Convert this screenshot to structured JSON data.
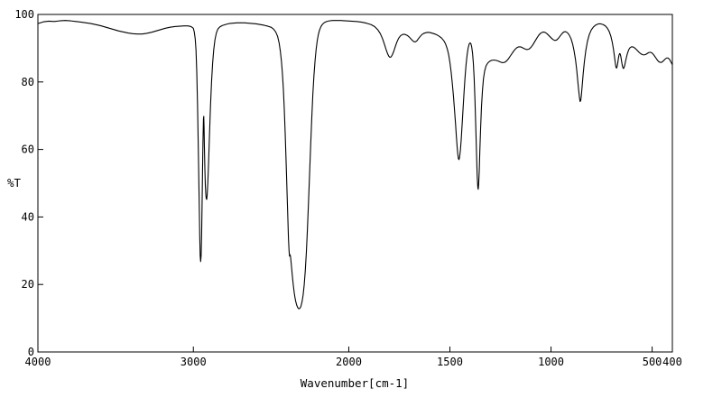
{
  "colors": {
    "background": "#ffffff",
    "line": "#000000",
    "axis": "#000000"
  },
  "chart_data": {
    "type": "line",
    "title": "",
    "xlabel": "Wavenumber[cm-1]",
    "ylabel": "%T",
    "x_axis": {
      "min": 400,
      "max": 4000,
      "break_at": 2000,
      "left_fraction": 0.49,
      "ticks": [
        4000,
        3000,
        2000,
        1500,
        1000,
        500,
        400
      ]
    },
    "y_axis": {
      "min": 0,
      "max": 100,
      "ticks": [
        0,
        20,
        40,
        60,
        80,
        100
      ]
    },
    "grid": false,
    "legend": false,
    "points": [
      [
        4000,
        97.3
      ],
      [
        3965,
        97.8
      ],
      [
        3930,
        98.0
      ],
      [
        3895,
        97.9
      ],
      [
        3860,
        98.1
      ],
      [
        3825,
        98.2
      ],
      [
        3790,
        98.1
      ],
      [
        3755,
        97.9
      ],
      [
        3720,
        97.7
      ],
      [
        3690,
        97.5
      ],
      [
        3660,
        97.3
      ],
      [
        3630,
        97.0
      ],
      [
        3600,
        96.7
      ],
      [
        3570,
        96.3
      ],
      [
        3540,
        95.9
      ],
      [
        3510,
        95.5
      ],
      [
        3480,
        95.1
      ],
      [
        3450,
        94.8
      ],
      [
        3420,
        94.5
      ],
      [
        3390,
        94.3
      ],
      [
        3360,
        94.2
      ],
      [
        3330,
        94.2
      ],
      [
        3300,
        94.4
      ],
      [
        3270,
        94.7
      ],
      [
        3240,
        95.1
      ],
      [
        3210,
        95.5
      ],
      [
        3180,
        95.9
      ],
      [
        3150,
        96.2
      ],
      [
        3120,
        96.4
      ],
      [
        3090,
        96.5
      ],
      [
        3060,
        96.6
      ],
      [
        3035,
        96.6
      ],
      [
        3015,
        96.4
      ],
      [
        3000,
        95.9
      ],
      [
        2994,
        94.8
      ],
      [
        2988,
        92.8
      ],
      [
        2983,
        89.5
      ],
      [
        2978,
        83.0
      ],
      [
        2973,
        73.0
      ],
      [
        2968,
        60.0
      ],
      [
        2963,
        46.0
      ],
      [
        2959,
        34.5
      ],
      [
        2956,
        28.5
      ],
      [
        2953,
        26.8
      ],
      [
        2950,
        28.5
      ],
      [
        2947,
        34.0
      ],
      [
        2944,
        43.0
      ],
      [
        2941,
        53.5
      ],
      [
        2938,
        62.5
      ],
      [
        2935,
        69.0
      ],
      [
        2933,
        69.8
      ],
      [
        2931,
        66.5
      ],
      [
        2929,
        61.0
      ],
      [
        2926,
        54.5
      ],
      [
        2923,
        49.5
      ],
      [
        2920,
        46.8
      ],
      [
        2917,
        45.4
      ],
      [
        2914,
        45.2
      ],
      [
        2911,
        46.5
      ],
      [
        2907,
        50.0
      ],
      [
        2902,
        56.0
      ],
      [
        2896,
        64.5
      ],
      [
        2890,
        72.5
      ],
      [
        2883,
        80.0
      ],
      [
        2876,
        85.5
      ],
      [
        2869,
        89.5
      ],
      [
        2861,
        92.5
      ],
      [
        2852,
        94.5
      ],
      [
        2842,
        95.7
      ],
      [
        2830,
        96.3
      ],
      [
        2815,
        96.7
      ],
      [
        2795,
        97.0
      ],
      [
        2770,
        97.3
      ],
      [
        2745,
        97.4
      ],
      [
        2720,
        97.5
      ],
      [
        2695,
        97.5
      ],
      [
        2670,
        97.5
      ],
      [
        2645,
        97.4
      ],
      [
        2620,
        97.3
      ],
      [
        2595,
        97.2
      ],
      [
        2570,
        97.0
      ],
      [
        2545,
        96.8
      ],
      [
        2520,
        96.5
      ],
      [
        2500,
        96.2
      ],
      [
        2485,
        95.7
      ],
      [
        2470,
        94.8
      ],
      [
        2458,
        93.5
      ],
      [
        2448,
        91.5
      ],
      [
        2440,
        89.0
      ],
      [
        2433,
        86.0
      ],
      [
        2427,
        82.5
      ],
      [
        2421,
        78.0
      ],
      [
        2415,
        72.0
      ],
      [
        2409,
        64.5
      ],
      [
        2403,
        56.0
      ],
      [
        2397,
        47.0
      ],
      [
        2392,
        39.5
      ],
      [
        2388,
        33.5
      ],
      [
        2384,
        29.8
      ],
      [
        2381,
        28.4
      ],
      [
        2378,
        28.8
      ],
      [
        2375,
        28.3
      ],
      [
        2372,
        27.0
      ],
      [
        2368,
        25.0
      ],
      [
        2363,
        22.5
      ],
      [
        2357,
        19.8
      ],
      [
        2350,
        17.2
      ],
      [
        2343,
        15.3
      ],
      [
        2336,
        14.0
      ],
      [
        2329,
        13.2
      ],
      [
        2322,
        12.8
      ],
      [
        2315,
        12.9
      ],
      [
        2308,
        13.5
      ],
      [
        2301,
        14.8
      ],
      [
        2294,
        16.8
      ],
      [
        2287,
        19.8
      ],
      [
        2280,
        24.0
      ],
      [
        2273,
        29.5
      ],
      [
        2266,
        36.5
      ],
      [
        2259,
        44.5
      ],
      [
        2252,
        53.0
      ],
      [
        2245,
        61.5
      ],
      [
        2238,
        69.5
      ],
      [
        2231,
        76.5
      ],
      [
        2224,
        82.0
      ],
      [
        2217,
        86.3
      ],
      [
        2210,
        89.7
      ],
      [
        2203,
        92.2
      ],
      [
        2196,
        94.0
      ],
      [
        2188,
        95.4
      ],
      [
        2179,
        96.4
      ],
      [
        2169,
        97.1
      ],
      [
        2157,
        97.6
      ],
      [
        2143,
        97.9
      ],
      [
        2126,
        98.1
      ],
      [
        2105,
        98.2
      ],
      [
        2080,
        98.2
      ],
      [
        2050,
        98.2
      ],
      [
        2020,
        98.1
      ],
      [
        1990,
        98.0
      ],
      [
        1962,
        97.9
      ],
      [
        1936,
        97.7
      ],
      [
        1912,
        97.4
      ],
      [
        1890,
        97.0
      ],
      [
        1872,
        96.4
      ],
      [
        1857,
        95.5
      ],
      [
        1844,
        94.3
      ],
      [
        1833,
        92.8
      ],
      [
        1824,
        91.2
      ],
      [
        1816,
        89.7
      ],
      [
        1809,
        88.5
      ],
      [
        1803,
        87.7
      ],
      [
        1797,
        87.3
      ],
      [
        1791,
        87.4
      ],
      [
        1785,
        88.0
      ],
      [
        1778,
        89.0
      ],
      [
        1771,
        90.3
      ],
      [
        1763,
        91.7
      ],
      [
        1754,
        92.9
      ],
      [
        1744,
        93.7
      ],
      [
        1733,
        94.1
      ],
      [
        1722,
        94.1
      ],
      [
        1711,
        93.8
      ],
      [
        1701,
        93.3
      ],
      [
        1692,
        92.7
      ],
      [
        1684,
        92.2
      ],
      [
        1677,
        91.9
      ],
      [
        1670,
        91.9
      ],
      [
        1663,
        92.2
      ],
      [
        1656,
        92.8
      ],
      [
        1648,
        93.4
      ],
      [
        1639,
        94.0
      ],
      [
        1629,
        94.4
      ],
      [
        1618,
        94.6
      ],
      [
        1607,
        94.7
      ],
      [
        1596,
        94.6
      ],
      [
        1585,
        94.4
      ],
      [
        1574,
        94.2
      ],
      [
        1563,
        93.9
      ],
      [
        1552,
        93.5
      ],
      [
        1541,
        93.0
      ],
      [
        1530,
        92.2
      ],
      [
        1521,
        91.2
      ],
      [
        1513,
        89.8
      ],
      [
        1506,
        88.0
      ],
      [
        1500,
        85.8
      ],
      [
        1494,
        83.0
      ],
      [
        1488,
        79.5
      ],
      [
        1482,
        75.5
      ],
      [
        1477,
        71.5
      ],
      [
        1472,
        67.5
      ],
      [
        1468,
        63.8
      ],
      [
        1464,
        60.6
      ],
      [
        1461,
        58.6
      ],
      [
        1458,
        57.3
      ],
      [
        1455,
        57.0
      ],
      [
        1452,
        57.8
      ],
      [
        1448,
        59.8
      ],
      [
        1444,
        63.0
      ],
      [
        1440,
        67.0
      ],
      [
        1435,
        72.0
      ],
      [
        1430,
        77.0
      ],
      [
        1425,
        81.5
      ],
      [
        1420,
        85.2
      ],
      [
        1415,
        88.0
      ],
      [
        1410,
        90.0
      ],
      [
        1405,
        91.2
      ],
      [
        1400,
        91.6
      ],
      [
        1396,
        91.3
      ],
      [
        1392,
        90.3
      ],
      [
        1388,
        88.5
      ],
      [
        1384,
        85.5
      ],
      [
        1380,
        81.0
      ],
      [
        1376,
        74.5
      ],
      [
        1372,
        66.5
      ],
      [
        1368,
        58.0
      ],
      [
        1365,
        52.0
      ],
      [
        1362,
        48.8
      ],
      [
        1360,
        48.2
      ],
      [
        1358,
        49.5
      ],
      [
        1355,
        53.5
      ],
      [
        1352,
        59.5
      ],
      [
        1348,
        66.5
      ],
      [
        1344,
        72.5
      ],
      [
        1339,
        77.5
      ],
      [
        1334,
        81.0
      ],
      [
        1328,
        83.3
      ],
      [
        1321,
        84.8
      ],
      [
        1313,
        85.6
      ],
      [
        1304,
        86.1
      ],
      [
        1294,
        86.4
      ],
      [
        1283,
        86.5
      ],
      [
        1272,
        86.4
      ],
      [
        1261,
        86.2
      ],
      [
        1250,
        85.9
      ],
      [
        1240,
        85.7
      ],
      [
        1230,
        85.8
      ],
      [
        1220,
        86.2
      ],
      [
        1210,
        86.9
      ],
      [
        1200,
        87.8
      ],
      [
        1190,
        88.7
      ],
      [
        1180,
        89.5
      ],
      [
        1170,
        90.1
      ],
      [
        1160,
        90.4
      ],
      [
        1150,
        90.4
      ],
      [
        1140,
        90.1
      ],
      [
        1130,
        89.8
      ],
      [
        1120,
        89.6
      ],
      [
        1110,
        89.7
      ],
      [
        1100,
        90.2
      ],
      [
        1090,
        91.0
      ],
      [
        1080,
        92.0
      ],
      [
        1070,
        93.0
      ],
      [
        1060,
        93.9
      ],
      [
        1050,
        94.5
      ],
      [
        1040,
        94.8
      ],
      [
        1030,
        94.7
      ],
      [
        1020,
        94.3
      ],
      [
        1010,
        93.7
      ],
      [
        1000,
        93.1
      ],
      [
        991,
        92.6
      ],
      [
        982,
        92.3
      ],
      [
        973,
        92.4
      ],
      [
        964,
        92.9
      ],
      [
        955,
        93.6
      ],
      [
        946,
        94.3
      ],
      [
        937,
        94.8
      ],
      [
        928,
        94.9
      ],
      [
        919,
        94.6
      ],
      [
        910,
        93.9
      ],
      [
        901,
        92.8
      ],
      [
        893,
        91.2
      ],
      [
        886,
        89.2
      ],
      [
        879,
        86.6
      ],
      [
        873,
        83.6
      ],
      [
        868,
        80.4
      ],
      [
        863,
        77.4
      ],
      [
        859,
        75.2
      ],
      [
        856,
        74.2
      ],
      [
        853,
        74.5
      ],
      [
        850,
        76.0
      ],
      [
        846,
        78.8
      ],
      [
        841,
        82.4
      ],
      [
        835,
        86.0
      ],
      [
        828,
        89.3
      ],
      [
        820,
        92.0
      ],
      [
        811,
        94.0
      ],
      [
        801,
        95.4
      ],
      [
        790,
        96.3
      ],
      [
        778,
        96.9
      ],
      [
        766,
        97.2
      ],
      [
        754,
        97.2
      ],
      [
        742,
        97.0
      ],
      [
        731,
        96.6
      ],
      [
        721,
        95.9
      ],
      [
        712,
        94.9
      ],
      [
        704,
        93.5
      ],
      [
        697,
        91.7
      ],
      [
        691,
        89.6
      ],
      [
        686,
        87.4
      ],
      [
        682,
        85.5
      ],
      [
        679,
        84.4
      ],
      [
        676,
        84.1
      ],
      [
        673,
        84.6
      ],
      [
        670,
        85.7
      ],
      [
        667,
        86.9
      ],
      [
        664,
        87.9
      ],
      [
        661,
        88.4
      ],
      [
        658,
        88.3
      ],
      [
        655,
        87.6
      ],
      [
        652,
        86.5
      ],
      [
        649,
        85.4
      ],
      [
        646,
        84.5
      ],
      [
        643,
        84.0
      ],
      [
        640,
        84.1
      ],
      [
        636,
        84.8
      ],
      [
        632,
        86.0
      ],
      [
        627,
        87.3
      ],
      [
        622,
        88.5
      ],
      [
        616,
        89.5
      ],
      [
        610,
        90.1
      ],
      [
        603,
        90.4
      ],
      [
        596,
        90.4
      ],
      [
        589,
        90.2
      ],
      [
        581,
        89.8
      ],
      [
        573,
        89.3
      ],
      [
        565,
        88.8
      ],
      [
        557,
        88.4
      ],
      [
        549,
        88.1
      ],
      [
        541,
        88.0
      ],
      [
        533,
        88.1
      ],
      [
        525,
        88.4
      ],
      [
        517,
        88.7
      ],
      [
        509,
        88.8
      ],
      [
        501,
        88.6
      ],
      [
        493,
        88.1
      ],
      [
        485,
        87.4
      ],
      [
        477,
        86.7
      ],
      [
        469,
        86.1
      ],
      [
        461,
        85.8
      ],
      [
        453,
        85.8
      ],
      [
        445,
        86.2
      ],
      [
        437,
        86.7
      ],
      [
        429,
        87.1
      ],
      [
        421,
        87.1
      ],
      [
        413,
        86.6
      ],
      [
        406,
        85.8
      ],
      [
        400,
        85.1
      ]
    ]
  }
}
